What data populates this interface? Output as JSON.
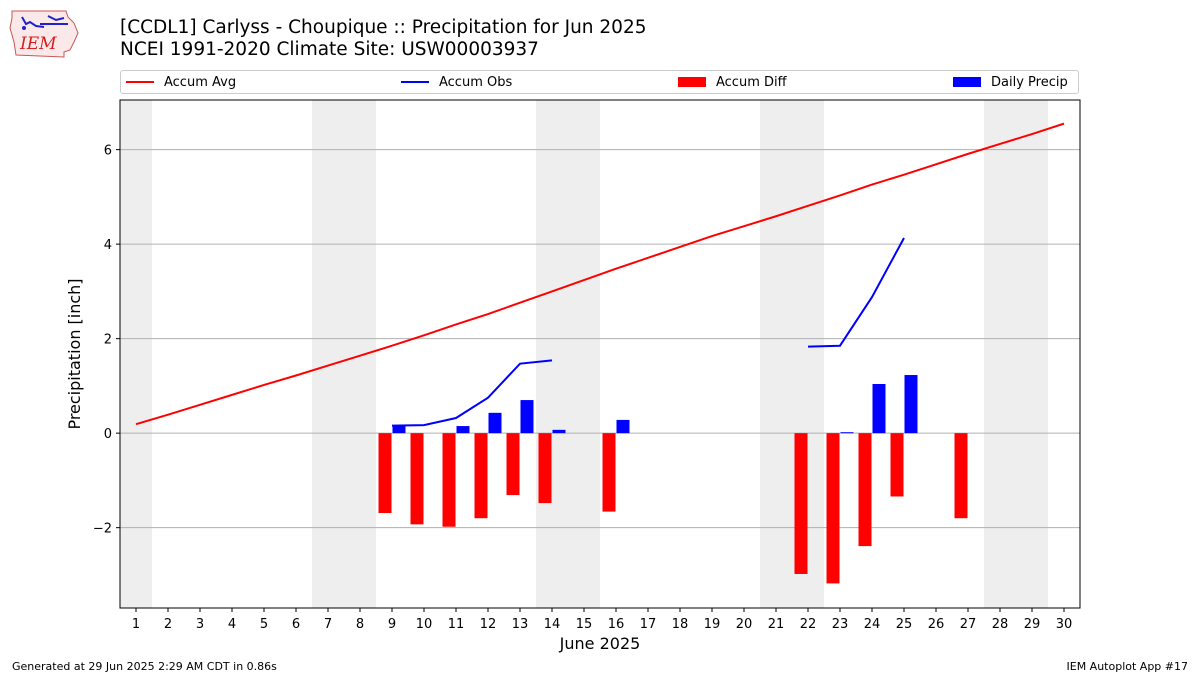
{
  "header": {
    "title_line1": "[CCDL1] Carlyss - Choupique :: Precipitation for Jun 2025",
    "title_line2": "NCEI 1991-2020 Climate Site: USW00003937"
  },
  "logo": {
    "text": "IEM",
    "icon": "iowa-state-outline-logo"
  },
  "legend": [
    {
      "label": "Accum Avg",
      "kind": "line",
      "color": "#ff0000"
    },
    {
      "label": "Accum Obs",
      "kind": "line",
      "color": "#0000ff"
    },
    {
      "label": "Accum Diff",
      "kind": "patch",
      "color": "#ff0000"
    },
    {
      "label": "Daily Precip",
      "kind": "patch",
      "color": "#0000ff"
    }
  ],
  "footer": {
    "left": "Generated at 29 Jun 2025 2:29 AM CDT in 0.86s",
    "right": "IEM Autoplot App #17"
  },
  "chart_data": {
    "type": "bar",
    "title": "[CCDL1] Carlyss - Choupique :: Precipitation for Jun 2025",
    "xlabel": "June 2025",
    "ylabel": "Precipitation [inch]",
    "x": [
      1,
      2,
      3,
      4,
      5,
      6,
      7,
      8,
      9,
      10,
      11,
      12,
      13,
      14,
      15,
      16,
      17,
      18,
      19,
      20,
      21,
      22,
      23,
      24,
      25,
      26,
      27,
      28,
      29,
      30
    ],
    "xlim": [
      0.5,
      30.5
    ],
    "ylim": [
      -3.7,
      7.05
    ],
    "yticks": [
      -2,
      0,
      2,
      4,
      6
    ],
    "grid": "horizontal",
    "legend_position": "top",
    "weekend_days": [
      1,
      7,
      8,
      14,
      15,
      21,
      22,
      28,
      29
    ],
    "series": [
      {
        "name": "Accum Avg",
        "kind": "line",
        "color": "#ff0000",
        "x": [
          1,
          2,
          3,
          4,
          5,
          6,
          7,
          8,
          9,
          10,
          11,
          12,
          13,
          14,
          15,
          16,
          17,
          18,
          19,
          20,
          21,
          22,
          23,
          24,
          25,
          26,
          27,
          28,
          29,
          30
        ],
        "values": [
          0.19,
          0.39,
          0.6,
          0.81,
          1.02,
          1.22,
          1.43,
          1.64,
          1.85,
          2.07,
          2.3,
          2.52,
          2.76,
          3.0,
          3.24,
          3.48,
          3.71,
          3.94,
          4.17,
          4.38,
          4.59,
          4.81,
          5.03,
          5.26,
          5.47,
          5.69,
          5.91,
          6.12,
          6.33,
          6.55
        ]
      },
      {
        "name": "Accum Obs",
        "kind": "line",
        "color": "#0000ff",
        "segments": [
          {
            "x": [
              9,
              10,
              11,
              12,
              13,
              14
            ],
            "values": [
              0.16,
              0.17,
              0.32,
              0.75,
              1.47,
              1.54
            ]
          },
          {
            "x": [
              22,
              23,
              24,
              25
            ],
            "values": [
              1.83,
              1.85,
              2.88,
              4.13
            ]
          }
        ]
      },
      {
        "name": "Accum Diff",
        "kind": "bar",
        "color": "#ff0000",
        "x": [
          9,
          10,
          11,
          12,
          13,
          14,
          16,
          22,
          23,
          24,
          25,
          27
        ],
        "values": [
          -1.69,
          -1.93,
          -1.98,
          -1.8,
          -1.31,
          -1.48,
          -1.66,
          -2.98,
          -3.18,
          -2.39,
          -1.34,
          -1.8
        ]
      },
      {
        "name": "Daily Precip",
        "kind": "bar",
        "color": "#0000ff",
        "x": [
          9,
          11,
          12,
          13,
          14,
          16,
          23,
          24,
          25
        ],
        "values": [
          0.16,
          0.15,
          0.43,
          0.7,
          0.07,
          0.28,
          0.02,
          1.04,
          1.23
        ]
      }
    ]
  }
}
